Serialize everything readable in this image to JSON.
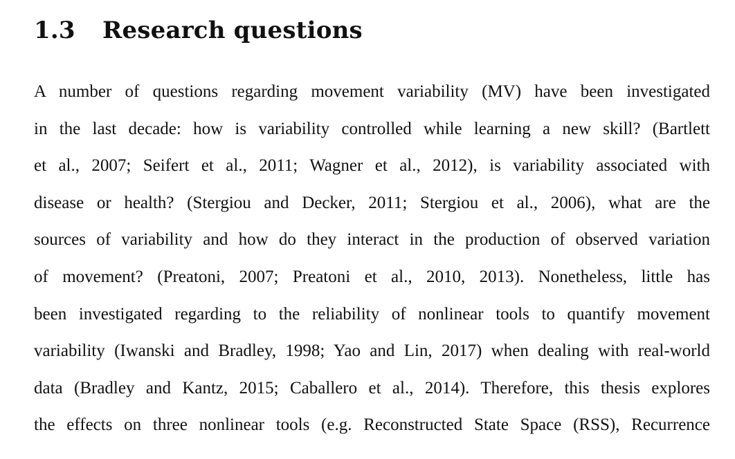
{
  "section": {
    "number": "1.3",
    "title": "Research questions"
  },
  "paragraph": {
    "lines": [
      "A number of questions regarding movement variability (MV) have been investigated",
      "in the last decade: how is variability controlled while learning a new skill? (Bartlett",
      "et al., 2007; Seifert et al., 2011; Wagner et al., 2012), is variability associated with",
      "disease or health? (Stergiou and Decker, 2011; Stergiou et al., 2006), what are the",
      "sources of variability and how do they interact in the production of observed variation",
      "of movement? (Preatoni, 2007; Preatoni et al., 2010, 2013). Nonetheless, little has",
      "been investigated regarding to the reliability of nonlinear tools to quantify movement",
      "variability (Iwanski and Bradley, 1998; Yao and Lin, 2017) when dealing with real-world",
      "data (Bradley and Kantz, 2015; Caballero et al., 2014). Therefore, this thesis explores",
      "the effects on three nonlinear tools (e.g. Reconstructed State Space (RSS), Recurrence"
    ]
  }
}
